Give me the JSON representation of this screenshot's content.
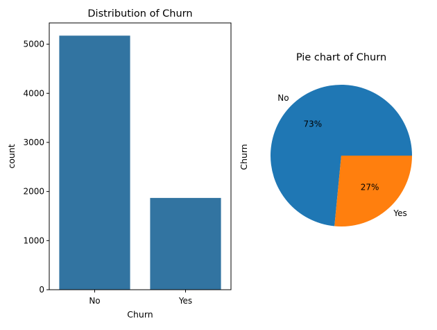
{
  "chart_data": [
    {
      "type": "bar",
      "title": "Distribution of Churn",
      "xlabel": "Churn",
      "ylabel": "count",
      "categories": [
        "No",
        "Yes"
      ],
      "values": [
        5174,
        1869
      ],
      "ylim": [
        0,
        5433
      ],
      "yticks": [
        0,
        1000,
        2000,
        3000,
        4000,
        5000
      ],
      "bar_color": "#3274a1",
      "grid": false
    },
    {
      "type": "pie",
      "title": "Pie chart of Churn",
      "ylabel": "Churn",
      "labels": [
        "No",
        "Yes"
      ],
      "values": [
        73.46,
        26.54
      ],
      "pct_labels": [
        "73%",
        "27%"
      ],
      "colors": [
        "#1f77b4",
        "#ff7f0e"
      ]
    }
  ]
}
